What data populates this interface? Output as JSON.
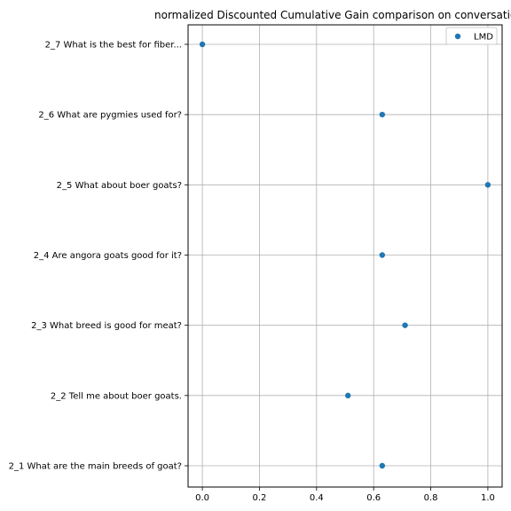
{
  "chart_data": {
    "type": "scatter",
    "title": "normalized Discounted Cumulative Gain comparison on conversatio",
    "xlabel": "",
    "ylabel": "",
    "xlim": [
      -0.05,
      1.05
    ],
    "xticks": [
      0.0,
      0.2,
      0.4,
      0.6,
      0.8,
      1.0
    ],
    "xtick_labels": [
      "0.0",
      "0.2",
      "0.4",
      "0.6",
      "0.8",
      "1.0"
    ],
    "categories": [
      "2_1 What are the main breeds of goat?",
      "2_2 Tell me about boer goats.",
      "2_3 What breed is good for meat?",
      "2_4 Are angora goats good for it?",
      "2_5 What about boer goats?",
      "2_6 What are pygmies used for?",
      "2_7 What is the best for fiber..."
    ],
    "grid": true,
    "legend": "top-right",
    "series": [
      {
        "name": "LMD",
        "color": "#1f77b4",
        "points": [
          {
            "y": "2_1 What are the main breeds of goat?",
            "x": 0.63
          },
          {
            "y": "2_2 Tell me about boer goats.",
            "x": 0.51
          },
          {
            "y": "2_3 What breed is good for meat?",
            "x": 0.71
          },
          {
            "y": "2_4 Are angora goats good for it?",
            "x": 0.63
          },
          {
            "y": "2_5 What about boer goats?",
            "x": 1.0
          },
          {
            "y": "2_6 What are pygmies used for?",
            "x": 0.63
          },
          {
            "y": "2_7 What is the best for fiber...",
            "x": 0.0
          }
        ]
      }
    ]
  }
}
